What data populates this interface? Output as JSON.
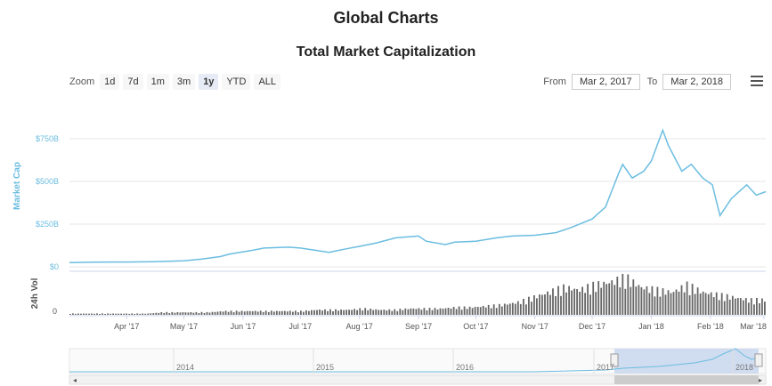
{
  "page": {
    "title": "Global Charts",
    "chart_title": "Total Market Capitalization"
  },
  "zoom": {
    "label": "Zoom",
    "buttons": [
      "1d",
      "7d",
      "1m",
      "3m",
      "1y",
      "YTD",
      "ALL"
    ],
    "active": "1y"
  },
  "range": {
    "from_label": "From",
    "from_value": "Mar 2, 2017",
    "to_label": "To",
    "to_value": "Mar 2, 2018"
  },
  "colors": {
    "line": "#6bbde0",
    "volume": "#666666",
    "navigator_fill": "#c5d4ec",
    "axis_label": "#6bbde0"
  },
  "chart_data": {
    "type": "line",
    "title": "Total Market Capitalization",
    "ylabel": "Market Cap",
    "y_ticks": [
      "$750B",
      "$500B",
      "$250B",
      "$0"
    ],
    "ylim": [
      0,
      800
    ],
    "y_unit": "billion USD",
    "x_tick_labels": [
      "Apr '17",
      "May '17",
      "Jun '17",
      "Jul '17",
      "Aug '17",
      "Sep '17",
      "Oct '17",
      "Nov '17",
      "Dec '17",
      "Jan '18",
      "Feb '18",
      "Mar '18"
    ],
    "series": [
      {
        "values_note": "Market cap in billions USD, sampled",
        "x": [
          "2017-03-02",
          "2017-03-15",
          "2017-04-01",
          "2017-04-15",
          "2017-05-01",
          "2017-05-10",
          "2017-05-20",
          "2017-05-25",
          "2017-06-05",
          "2017-06-12",
          "2017-06-25",
          "2017-07-01",
          "2017-07-10",
          "2017-07-16",
          "2017-07-25",
          "2017-08-01",
          "2017-08-10",
          "2017-08-20",
          "2017-09-01",
          "2017-09-05",
          "2017-09-15",
          "2017-09-20",
          "2017-10-01",
          "2017-10-12",
          "2017-10-20",
          "2017-11-01",
          "2017-11-12",
          "2017-11-20",
          "2017-12-01",
          "2017-12-08",
          "2017-12-15",
          "2017-12-17",
          "2017-12-22",
          "2017-12-28",
          "2018-01-01",
          "2018-01-07",
          "2018-01-10",
          "2018-01-17",
          "2018-01-22",
          "2018-01-28",
          "2018-02-02",
          "2018-02-06",
          "2018-02-12",
          "2018-02-20",
          "2018-02-25",
          "2018-03-02"
        ],
        "y": [
          25,
          27,
          28,
          30,
          35,
          45,
          60,
          75,
          95,
          110,
          115,
          110,
          95,
          85,
          105,
          120,
          140,
          170,
          180,
          150,
          130,
          145,
          150,
          170,
          180,
          185,
          200,
          230,
          280,
          350,
          550,
          600,
          520,
          560,
          620,
          800,
          710,
          560,
          600,
          520,
          480,
          300,
          400,
          480,
          420,
          440
        ]
      }
    ],
    "volume_label": "24h Vol",
    "volume_ticks": [
      "0"
    ],
    "volume_units": "relative",
    "volume": [
      1,
      1,
      1,
      1,
      1,
      1,
      2,
      2,
      2,
      2,
      3,
      3,
      3,
      3,
      3,
      3,
      4,
      4,
      4,
      5,
      4,
      4,
      5,
      5,
      5,
      6,
      6,
      7,
      8,
      10,
      14,
      18,
      22,
      20,
      24,
      26,
      30,
      22,
      20,
      18,
      24,
      18,
      16,
      14,
      12,
      12
    ],
    "navigator": {
      "year_labels": [
        "2014",
        "2015",
        "2016",
        "2017",
        "2018"
      ]
    }
  }
}
